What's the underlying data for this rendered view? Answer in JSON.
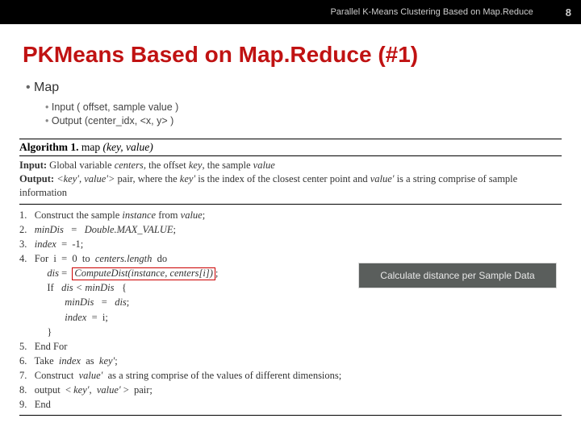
{
  "header": {
    "title": "Parallel K-Means Clustering Based on Map.Reduce",
    "page_number": "8"
  },
  "slide": {
    "title": "PKMeans Based on Map.Reduce (#1)",
    "bullet_main": "Map",
    "bullet_sub1": "Input ( offset, sample value )",
    "bullet_sub2": "Output (center_idx, <x, y> )"
  },
  "algorithm": {
    "name_label": "Algorithm 1.",
    "name_func": "map",
    "name_args": "(key, value)",
    "input_label": "Input:",
    "input_text_a": "Global variable ",
    "input_text_b": "centers",
    "input_text_c": ", the offset ",
    "input_text_d": "key",
    "input_text_e": ", the sample ",
    "input_text_f": "value",
    "output_label": "Output:",
    "output_text_a": "<key', value'>",
    "output_text_b": " pair, where the ",
    "output_text_c": "key'",
    "output_text_d": " is the index of the closest center point and ",
    "output_text_e": "value'",
    "output_text_f": " is a string comprise of sample information",
    "l1_a": "1.   Construct the sample ",
    "l1_b": "instance",
    "l1_c": " from ",
    "l1_d": "value",
    "l1_e": ";",
    "l2_a": "2.   ",
    "l2_b": "minDis",
    "l2_c": "   =   ",
    "l2_d": "Double.MAX_VALUE",
    "l2_e": ";",
    "l3_a": "3.   ",
    "l3_b": "index",
    "l3_c": "  =  -1;",
    "l4_a": "4.   For  i  =  0  to  ",
    "l4_b": "centers.length",
    "l4_c": "  do",
    "l5_a": "           ",
    "l5_b": "dis",
    "l5_c": " =  ",
    "l5_box": "ComputeDist(instance, centers[i])",
    "l5_d": ";",
    "l6_a": "           If   ",
    "l6_b": "dis < minDis",
    "l6_c": "   {",
    "l7_a": "                  ",
    "l7_b": "minDis",
    "l7_c": "   =   ",
    "l7_d": "dis",
    "l7_e": ";",
    "l8_a": "                  ",
    "l8_b": "index",
    "l8_c": "  =  i;",
    "l9": "           }",
    "l10": "5.   End For",
    "l11_a": "6.   Take  ",
    "l11_b": "index",
    "l11_c": "  as  ",
    "l11_d": "key'",
    "l11_e": ";",
    "l12_a": "7.   Construct  ",
    "l12_b": "value'",
    "l12_c": "  as a string comprise of the values of different dimensions;",
    "l13_a": "8.   output  < ",
    "l13_b": "key'",
    "l13_c": ",  ",
    "l13_d": "value'",
    "l13_e": " >  pair;",
    "l14": "9.   End"
  },
  "callout": {
    "text": "Calculate distance per Sample Data"
  },
  "colors": {
    "header_bg": "#000000",
    "header_text": "#cccccc",
    "title_color": "#c01212",
    "redbox_border": "#cc0000",
    "callout_bg": "#5a5e5c",
    "callout_text": "#e8e8e8"
  }
}
